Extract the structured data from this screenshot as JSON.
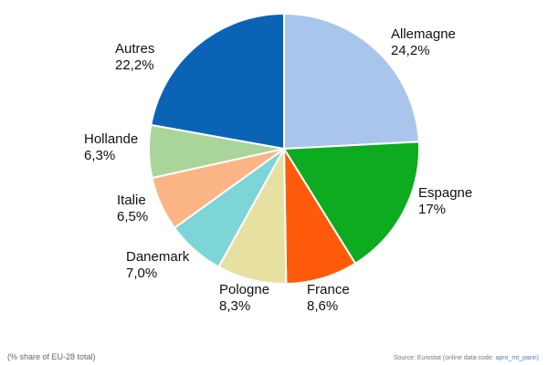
{
  "chart_data": {
    "type": "pie",
    "categories": [
      "Allemagne",
      "Espagne",
      "France",
      "Pologne",
      "Danemark",
      "Italie",
      "Hollande",
      "Autres"
    ],
    "values": [
      24.2,
      17,
      8.6,
      8.3,
      7.0,
      6.5,
      6.3,
      22.2
    ],
    "value_labels": [
      "24,2%",
      "17%",
      "8,6%",
      "8,3%",
      "7,0%",
      "6,5%",
      "6,3%",
      "22,2%"
    ],
    "colors": [
      "#aac5ec",
      "#0dab1f",
      "#ff5b0b",
      "#e6e1a1",
      "#7dd5d7",
      "#fbb585",
      "#a9d59b",
      "#0b63b6"
    ],
    "note": "(% share of EU-28 total)",
    "source": [
      "Source: Eurostat (online data code: ",
      "apro_mt_pann",
      ")"
    ]
  }
}
